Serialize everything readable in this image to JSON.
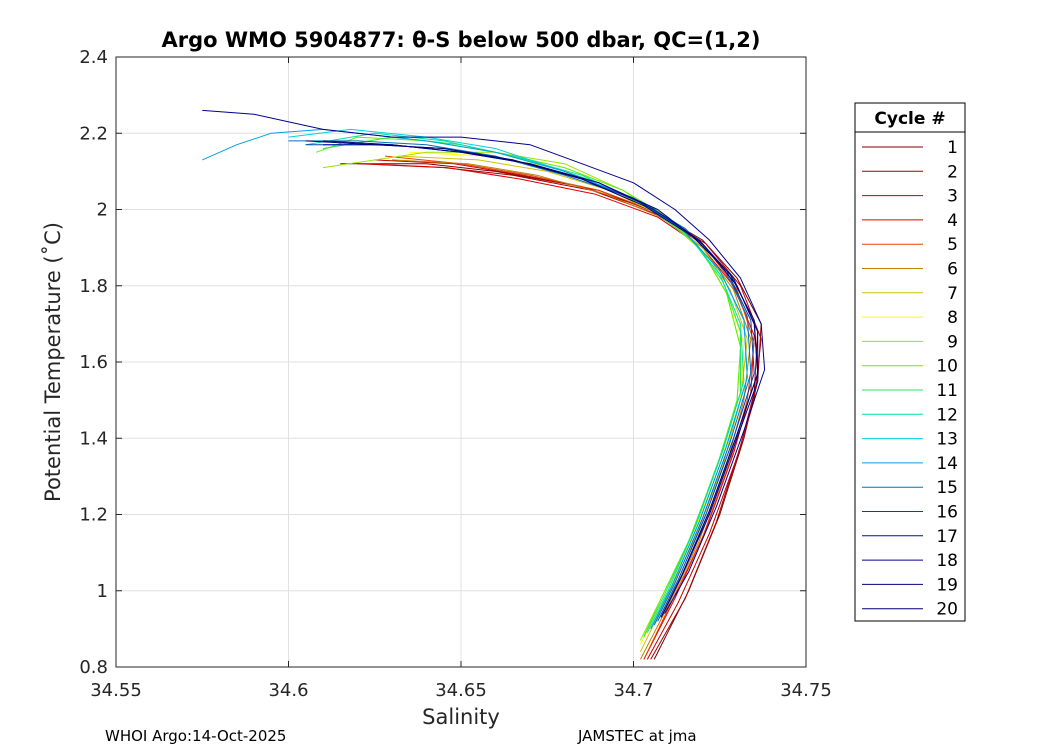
{
  "chart_data": {
    "type": "line",
    "title": "Argo WMO 5904877: θ-S below 500 dbar,  QC=(1,2)",
    "xlabel": "Salinity",
    "ylabel": "Potential Temperature (˚C)",
    "xlim": [
      34.55,
      34.75
    ],
    "ylim": [
      0.8,
      2.4
    ],
    "xticks": [
      "34.55",
      "34.6",
      "34.65",
      "34.7",
      "34.75"
    ],
    "yticks": [
      "0.8",
      "1",
      "1.2",
      "1.4",
      "1.6",
      "1.8",
      "2",
      "2.2",
      "2.4"
    ],
    "grid": true,
    "legend": {
      "title": "Cycle #",
      "placement": "right"
    },
    "series": [
      {
        "name": "1",
        "color": "#800000",
        "points": [
          [
            34.615,
            2.12
          ],
          [
            34.64,
            2.12
          ],
          [
            34.66,
            2.1
          ],
          [
            34.685,
            2.06
          ],
          [
            34.705,
            2.0
          ],
          [
            34.72,
            1.92
          ],
          [
            34.73,
            1.82
          ],
          [
            34.737,
            1.7
          ],
          [
            34.736,
            1.55
          ],
          [
            34.732,
            1.4
          ],
          [
            34.725,
            1.2
          ],
          [
            34.716,
            1.0
          ],
          [
            34.706,
            0.82
          ]
        ]
      },
      {
        "name": "2",
        "color": "#a00000",
        "points": [
          [
            34.62,
            2.12
          ],
          [
            34.645,
            2.11
          ],
          [
            34.665,
            2.09
          ],
          [
            34.688,
            2.05
          ],
          [
            34.706,
            1.99
          ],
          [
            34.72,
            1.91
          ],
          [
            34.73,
            1.8
          ],
          [
            34.736,
            1.68
          ],
          [
            34.735,
            1.52
          ],
          [
            34.731,
            1.38
          ],
          [
            34.724,
            1.18
          ],
          [
            34.715,
            0.98
          ],
          [
            34.705,
            0.82
          ]
        ]
      },
      {
        "name": "3",
        "color": "#c00000",
        "points": [
          [
            34.625,
            2.13
          ],
          [
            34.648,
            2.12
          ],
          [
            34.668,
            2.09
          ],
          [
            34.69,
            2.05
          ],
          [
            34.707,
            1.99
          ],
          [
            34.721,
            1.91
          ],
          [
            34.731,
            1.8
          ],
          [
            34.737,
            1.66
          ],
          [
            34.735,
            1.5
          ],
          [
            34.73,
            1.35
          ],
          [
            34.722,
            1.15
          ],
          [
            34.713,
            0.97
          ],
          [
            34.704,
            0.82
          ]
        ]
      },
      {
        "name": "4",
        "color": "#e00000",
        "points": [
          [
            34.622,
            2.12
          ],
          [
            34.646,
            2.11
          ],
          [
            34.667,
            2.08
          ],
          [
            34.689,
            2.04
          ],
          [
            34.707,
            1.98
          ],
          [
            34.72,
            1.9
          ],
          [
            34.729,
            1.8
          ],
          [
            34.735,
            1.67
          ],
          [
            34.734,
            1.52
          ],
          [
            34.729,
            1.36
          ],
          [
            34.721,
            1.16
          ],
          [
            34.712,
            0.98
          ],
          [
            34.703,
            0.82
          ]
        ]
      },
      {
        "name": "5",
        "color": "#e84000",
        "points": [
          [
            34.628,
            2.14
          ],
          [
            34.65,
            2.12
          ],
          [
            34.67,
            2.09
          ],
          [
            34.69,
            2.05
          ],
          [
            34.708,
            1.99
          ],
          [
            34.721,
            1.9
          ],
          [
            34.73,
            1.79
          ],
          [
            34.735,
            1.65
          ],
          [
            34.733,
            1.5
          ],
          [
            34.728,
            1.34
          ],
          [
            34.72,
            1.14
          ],
          [
            34.711,
            0.97
          ],
          [
            34.703,
            0.82
          ]
        ]
      },
      {
        "name": "6",
        "color": "#c08000",
        "points": [
          [
            34.63,
            2.13
          ],
          [
            34.652,
            2.12
          ],
          [
            34.672,
            2.09
          ],
          [
            34.692,
            2.04
          ],
          [
            34.708,
            1.98
          ],
          [
            34.72,
            1.9
          ],
          [
            34.729,
            1.79
          ],
          [
            34.734,
            1.66
          ],
          [
            34.732,
            1.5
          ],
          [
            34.727,
            1.33
          ],
          [
            34.719,
            1.13
          ],
          [
            34.71,
            0.96
          ],
          [
            34.702,
            0.82
          ]
        ]
      },
      {
        "name": "7",
        "color": "#d0c000",
        "points": [
          [
            34.632,
            2.14
          ],
          [
            34.655,
            2.13
          ],
          [
            34.675,
            2.1
          ],
          [
            34.693,
            2.05
          ],
          [
            34.709,
            1.98
          ],
          [
            34.72,
            1.9
          ],
          [
            34.728,
            1.79
          ],
          [
            34.733,
            1.66
          ],
          [
            34.731,
            1.5
          ],
          [
            34.726,
            1.33
          ],
          [
            34.718,
            1.14
          ],
          [
            34.709,
            0.97
          ],
          [
            34.702,
            0.84
          ]
        ]
      },
      {
        "name": "8",
        "color": "#ffff00",
        "points": [
          [
            34.635,
            2.15
          ],
          [
            34.658,
            2.14
          ],
          [
            34.677,
            2.11
          ],
          [
            34.694,
            2.05
          ],
          [
            34.709,
            1.98
          ],
          [
            34.72,
            1.89
          ],
          [
            34.727,
            1.78
          ],
          [
            34.732,
            1.65
          ],
          [
            34.731,
            1.5
          ],
          [
            34.725,
            1.33
          ],
          [
            34.717,
            1.14
          ],
          [
            34.709,
            0.98
          ],
          [
            34.702,
            0.86
          ]
        ]
      },
      {
        "name": "9",
        "color": "#a0e000",
        "points": [
          [
            34.61,
            2.11
          ],
          [
            34.64,
            2.15
          ],
          [
            34.66,
            2.15
          ],
          [
            34.68,
            2.12
          ],
          [
            34.697,
            2.05
          ],
          [
            34.71,
            1.97
          ],
          [
            34.72,
            1.89
          ],
          [
            34.727,
            1.78
          ],
          [
            34.731,
            1.64
          ],
          [
            34.73,
            1.49
          ],
          [
            34.724,
            1.32
          ],
          [
            34.716,
            1.13
          ],
          [
            34.708,
            0.98
          ],
          [
            34.702,
            0.87
          ]
        ]
      },
      {
        "name": "10",
        "color": "#60f000",
        "points": [
          [
            34.608,
            2.15
          ],
          [
            34.62,
            2.19
          ],
          [
            34.64,
            2.18
          ],
          [
            34.66,
            2.15
          ],
          [
            34.68,
            2.11
          ],
          [
            34.697,
            2.05
          ],
          [
            34.71,
            1.98
          ],
          [
            34.72,
            1.89
          ],
          [
            34.727,
            1.78
          ],
          [
            34.731,
            1.64
          ],
          [
            34.73,
            1.5
          ],
          [
            34.724,
            1.32
          ],
          [
            34.716,
            1.13
          ],
          [
            34.708,
            0.98
          ],
          [
            34.703,
            0.88
          ]
        ]
      },
      {
        "name": "11",
        "color": "#30e060",
        "points": [
          [
            34.61,
            2.16
          ],
          [
            34.63,
            2.19
          ],
          [
            34.65,
            2.17
          ],
          [
            34.67,
            2.13
          ],
          [
            34.69,
            2.07
          ],
          [
            34.705,
            2.0
          ],
          [
            34.717,
            1.92
          ],
          [
            34.726,
            1.81
          ],
          [
            34.731,
            1.68
          ],
          [
            34.731,
            1.52
          ],
          [
            34.725,
            1.35
          ],
          [
            34.717,
            1.15
          ],
          [
            34.709,
            0.99
          ],
          [
            34.703,
            0.88
          ]
        ]
      },
      {
        "name": "12",
        "color": "#00e0a0",
        "points": [
          [
            34.605,
            2.17
          ],
          [
            34.625,
            2.2
          ],
          [
            34.645,
            2.18
          ],
          [
            34.665,
            2.14
          ],
          [
            34.685,
            2.09
          ],
          [
            34.702,
            2.02
          ],
          [
            34.715,
            1.94
          ],
          [
            34.725,
            1.83
          ],
          [
            34.731,
            1.7
          ],
          [
            34.732,
            1.55
          ],
          [
            34.726,
            1.37
          ],
          [
            34.718,
            1.17
          ],
          [
            34.71,
            1.0
          ],
          [
            34.704,
            0.89
          ]
        ]
      },
      {
        "name": "13",
        "color": "#00d0e0",
        "points": [
          [
            34.6,
            2.19
          ],
          [
            34.618,
            2.21
          ],
          [
            34.64,
            2.19
          ],
          [
            34.66,
            2.16
          ],
          [
            34.68,
            2.1
          ],
          [
            34.7,
            2.03
          ],
          [
            34.714,
            1.95
          ],
          [
            34.725,
            1.84
          ],
          [
            34.732,
            1.71
          ],
          [
            34.733,
            1.56
          ],
          [
            34.727,
            1.38
          ],
          [
            34.719,
            1.18
          ],
          [
            34.711,
            1.01
          ],
          [
            34.705,
            0.9
          ]
        ]
      },
      {
        "name": "14",
        "color": "#00a0e0",
        "points": [
          [
            34.575,
            2.13
          ],
          [
            34.585,
            2.17
          ],
          [
            34.595,
            2.2
          ],
          [
            34.61,
            2.21
          ],
          [
            34.62,
            2.2
          ],
          [
            34.64,
            2.18
          ],
          [
            34.66,
            2.15
          ],
          [
            34.68,
            2.1
          ],
          [
            34.7,
            2.03
          ],
          [
            34.714,
            1.95
          ],
          [
            34.725,
            1.84
          ],
          [
            34.732,
            1.71
          ],
          [
            34.733,
            1.56
          ],
          [
            34.727,
            1.38
          ],
          [
            34.719,
            1.18
          ],
          [
            34.711,
            1.01
          ],
          [
            34.705,
            0.9
          ]
        ]
      },
      {
        "name": "15",
        "color": "#0070c0",
        "points": [
          [
            34.6,
            2.18
          ],
          [
            34.62,
            2.18
          ],
          [
            34.64,
            2.17
          ],
          [
            34.66,
            2.14
          ],
          [
            34.68,
            2.09
          ],
          [
            34.7,
            2.03
          ],
          [
            34.715,
            1.95
          ],
          [
            34.726,
            1.85
          ],
          [
            34.733,
            1.72
          ],
          [
            34.734,
            1.57
          ],
          [
            34.728,
            1.39
          ],
          [
            34.72,
            1.19
          ],
          [
            34.712,
            1.02
          ],
          [
            34.706,
            0.91
          ]
        ]
      },
      {
        "name": "16",
        "color": "#0040b0",
        "points": [
          [
            34.605,
            2.17
          ],
          [
            34.625,
            2.17
          ],
          [
            34.645,
            2.16
          ],
          [
            34.665,
            2.13
          ],
          [
            34.685,
            2.08
          ],
          [
            34.702,
            2.02
          ],
          [
            34.716,
            1.94
          ],
          [
            34.727,
            1.84
          ],
          [
            34.734,
            1.71
          ],
          [
            34.735,
            1.57
          ],
          [
            34.729,
            1.4
          ],
          [
            34.721,
            1.2
          ],
          [
            34.713,
            1.03
          ],
          [
            34.707,
            0.92
          ]
        ]
      },
      {
        "name": "17",
        "color": "#0010a0",
        "points": [
          [
            34.61,
            2.17
          ],
          [
            34.63,
            2.17
          ],
          [
            34.65,
            2.15
          ],
          [
            34.67,
            2.12
          ],
          [
            34.69,
            2.07
          ],
          [
            34.706,
            2.0
          ],
          [
            34.719,
            1.92
          ],
          [
            34.729,
            1.82
          ],
          [
            34.735,
            1.7
          ],
          [
            34.736,
            1.57
          ],
          [
            34.73,
            1.41
          ],
          [
            34.722,
            1.21
          ],
          [
            34.714,
            1.04
          ],
          [
            34.708,
            0.93
          ]
        ]
      },
      {
        "name": "18",
        "color": "#000090",
        "points": [
          [
            34.575,
            2.26
          ],
          [
            34.59,
            2.25
          ],
          [
            34.61,
            2.21
          ],
          [
            34.63,
            2.19
          ],
          [
            34.65,
            2.19
          ],
          [
            34.67,
            2.17
          ],
          [
            34.685,
            2.12
          ],
          [
            34.7,
            2.07
          ],
          [
            34.712,
            2.0
          ],
          [
            34.722,
            1.92
          ],
          [
            34.731,
            1.82
          ],
          [
            34.737,
            1.7
          ],
          [
            34.738,
            1.58
          ],
          [
            34.732,
            1.42
          ],
          [
            34.724,
            1.22
          ],
          [
            34.716,
            1.05
          ],
          [
            34.709,
            0.94
          ]
        ]
      },
      {
        "name": "19",
        "color": "#000080",
        "points": [
          [
            34.61,
            2.18
          ],
          [
            34.63,
            2.17
          ],
          [
            34.65,
            2.15
          ],
          [
            34.67,
            2.12
          ],
          [
            34.69,
            2.07
          ],
          [
            34.707,
            2.0
          ],
          [
            34.72,
            1.91
          ],
          [
            34.73,
            1.8
          ],
          [
            34.736,
            1.68
          ],
          [
            34.736,
            1.55
          ],
          [
            34.73,
            1.4
          ],
          [
            34.722,
            1.2
          ],
          [
            34.714,
            1.04
          ],
          [
            34.708,
            0.93
          ]
        ]
      },
      {
        "name": "20",
        "color": "#000070",
        "points": [
          [
            34.605,
            2.18
          ],
          [
            34.625,
            2.17
          ],
          [
            34.645,
            2.16
          ],
          [
            34.665,
            2.13
          ],
          [
            34.685,
            2.08
          ],
          [
            34.703,
            2.01
          ],
          [
            34.717,
            1.93
          ],
          [
            34.728,
            1.83
          ],
          [
            34.735,
            1.71
          ],
          [
            34.736,
            1.57
          ],
          [
            34.73,
            1.41
          ],
          [
            34.722,
            1.21
          ],
          [
            34.714,
            1.04
          ],
          [
            34.708,
            0.93
          ]
        ]
      }
    ]
  },
  "footer": {
    "left": "WHOI Argo:14-Oct-2025",
    "right": "JAMSTEC at jma"
  }
}
